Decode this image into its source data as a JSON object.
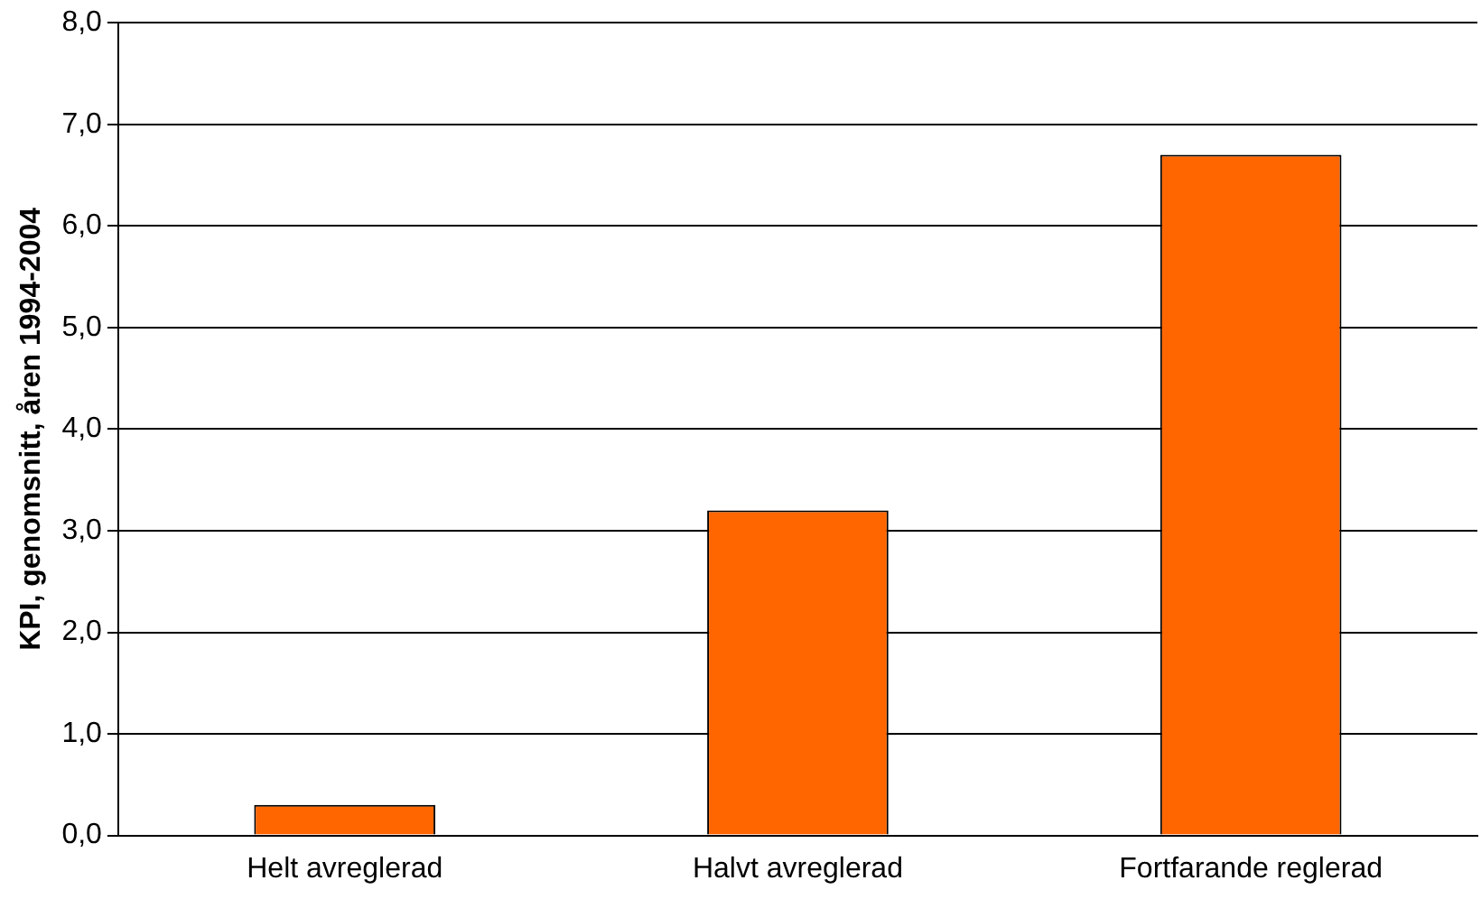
{
  "chart_data": {
    "type": "bar",
    "ylabel": "KPI, genomsnitt, åren 1994-2004",
    "categories": [
      "Helt avreglerad",
      "Halvt avreglerad",
      "Fortfarande reglerad"
    ],
    "values": [
      0.3,
      3.2,
      6.7
    ],
    "color": "#ff6600",
    "ylim": [
      0,
      8
    ],
    "yticks": [
      {
        "value": 0,
        "label": "0,0"
      },
      {
        "value": 1,
        "label": "1,0"
      },
      {
        "value": 2,
        "label": "2,0"
      },
      {
        "value": 3,
        "label": "3,0"
      },
      {
        "value": 4,
        "label": "4,0"
      },
      {
        "value": 5,
        "label": "5,0"
      },
      {
        "value": 6,
        "label": "6,0"
      },
      {
        "value": 7,
        "label": "7,0"
      },
      {
        "value": 8,
        "label": "8,0"
      }
    ],
    "grid": "y",
    "legend": false
  }
}
